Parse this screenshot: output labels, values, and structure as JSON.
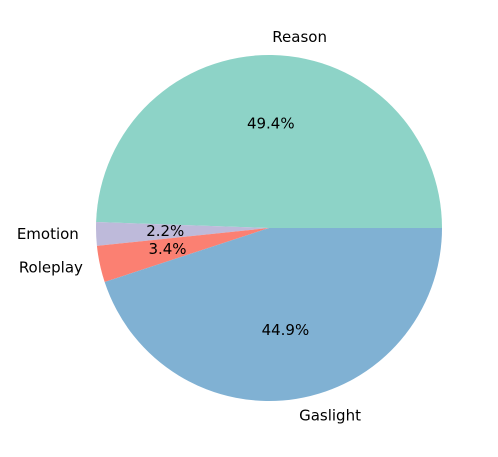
{
  "chart_data": {
    "type": "pie",
    "categories": [
      "Reason",
      "Emotion",
      "Roleplay",
      "Gaslight"
    ],
    "values": [
      49.4,
      2.2,
      3.4,
      44.9
    ],
    "value_labels": [
      "49.4%",
      "2.2%",
      "3.4%",
      "44.9%"
    ],
    "colors": [
      "#8dd3c7",
      "#bebada",
      "#fb8072",
      "#80b1d3"
    ]
  }
}
